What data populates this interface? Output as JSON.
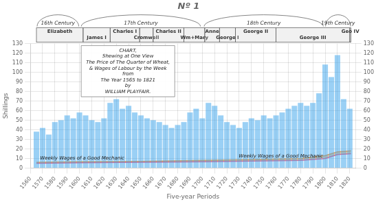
{
  "chart_data": {
    "type": "bar",
    "title": "Nº 1",
    "x_label": "Five-year Periods",
    "y_label": "Shillings",
    "series": [
      {
        "type": "bar",
        "x": [
          1565,
          1570,
          1575,
          1580,
          1585,
          1590,
          1595,
          1600,
          1605,
          1610,
          1615,
          1620,
          1625,
          1630,
          1635,
          1640,
          1645,
          1650,
          1655,
          1660,
          1665,
          1670,
          1675,
          1680,
          1685,
          1690,
          1695,
          1700,
          1705,
          1710,
          1715,
          1720,
          1725,
          1730,
          1735,
          1740,
          1745,
          1750,
          1755,
          1760,
          1765,
          1770,
          1775,
          1780,
          1785,
          1790,
          1795,
          1800,
          1805,
          1810,
          1815,
          1820
        ],
        "values": [
          38,
          42,
          35,
          48,
          50,
          55,
          52,
          58,
          55,
          50,
          48,
          52,
          68,
          72,
          62,
          65,
          58,
          55,
          52,
          50,
          48,
          45,
          42,
          45,
          48,
          58,
          62,
          52,
          68,
          65,
          55,
          48,
          45,
          42,
          48,
          52,
          50,
          55,
          52,
          55,
          58,
          62,
          65,
          68,
          65,
          68,
          78,
          108,
          95,
          118,
          72,
          62
        ]
      },
      {
        "type": "line",
        "x": [
          1565,
          1600,
          1650,
          1700,
          1750,
          1780,
          1800,
          1810,
          1821
        ],
        "values": [
          5.0,
          5.5,
          6.0,
          6.5,
          7.5,
          8.0,
          10.0,
          14.0,
          15.0
        ]
      },
      {
        "type": "line",
        "x": [
          1565,
          1600,
          1650,
          1700,
          1750,
          1780,
          1800,
          1810,
          1821
        ],
        "values": [
          6.0,
          6.5,
          7.0,
          8.0,
          9.0,
          10.0,
          13.0,
          17.0,
          18.0
        ]
      }
    ],
    "wage_labels": [
      "Weekly Wages of a Good Mechanic",
      "Weekly Wages of a Good Mechanic"
    ],
    "annotation": "CHART,\nShewing at One View\nThe Price of The Quarter of Wheat,\n& Wages of Labour by the Week\nfrom\nThe Year 1565 to 1821\nby\nWILLIAM PLAYFAIR.",
    "monarchs": [
      {
        "name": "Elizabeth",
        "start": 1565,
        "end": 1603
      },
      {
        "name": "James I",
        "start": 1603,
        "end": 1625
      },
      {
        "name": "Charles I",
        "start": 1625,
        "end": 1649
      },
      {
        "name": "Cromwell",
        "start": 1649,
        "end": 1660
      },
      {
        "name": "Charles II",
        "start": 1660,
        "end": 1685
      },
      {
        "name": "Wm+Mary",
        "start": 1685,
        "end": 1702
      },
      {
        "name": "Anne",
        "start": 1702,
        "end": 1714
      },
      {
        "name": "George I",
        "start": 1714,
        "end": 1727
      },
      {
        "name": "George II",
        "start": 1727,
        "end": 1760
      },
      {
        "name": "George III",
        "start": 1760,
        "end": 1820
      },
      {
        "name": "Geo IV",
        "start": 1820,
        "end": 1821
      }
    ],
    "centuries": [
      {
        "name": "16th Century",
        "start": 1565,
        "end": 1600
      },
      {
        "name": "17th Century",
        "start": 1600,
        "end": 1700
      },
      {
        "name": "18th Century",
        "start": 1700,
        "end": 1800
      },
      {
        "name": "19th Century",
        "start": 1800,
        "end": 1821
      }
    ],
    "xlim": [
      1560,
      1825
    ],
    "xticks": [
      1560,
      1570,
      1580,
      1590,
      1600,
      1610,
      1620,
      1630,
      1640,
      1650,
      1660,
      1670,
      1680,
      1690,
      1700,
      1710,
      1720,
      1730,
      1740,
      1750,
      1760,
      1770,
      1780,
      1790,
      1800,
      1810,
      1820
    ],
    "ylim": [
      0,
      130
    ],
    "yticks": [
      0,
      10,
      20,
      30,
      40,
      50,
      60,
      70,
      80,
      90,
      100,
      110,
      120,
      130
    ],
    "y2lim": [
      0,
      130
    ],
    "y2ticks": [
      0,
      10,
      20,
      30,
      40,
      50,
      60,
      70,
      80,
      90,
      100,
      110,
      120,
      130
    ],
    "grid": true
  }
}
